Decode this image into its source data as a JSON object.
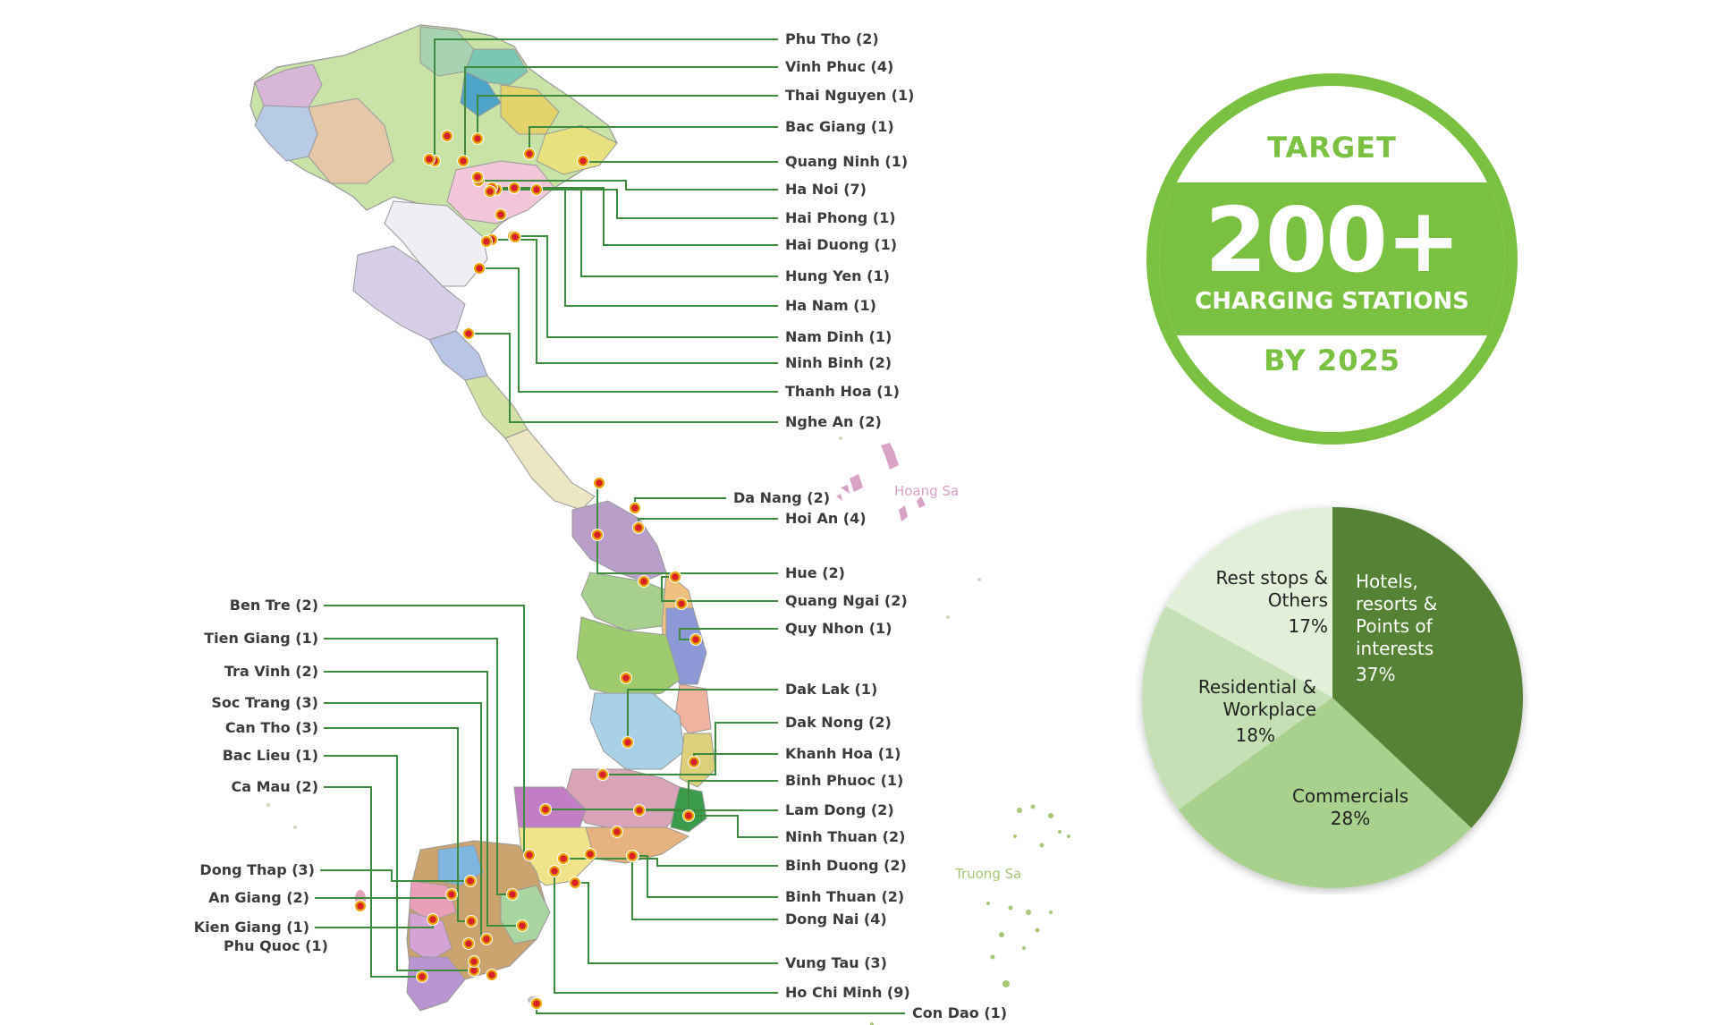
{
  "map": {
    "islands": {
      "hoang_sa": "Hoang Sa",
      "truong_sa": "Truong Sa"
    },
    "colors": {
      "leader": "#3d8b3d",
      "marker_ring": "#e8a400",
      "marker_dot": "#d6202a"
    },
    "right_labels": [
      "Phu Tho (2)",
      "Vinh Phuc (4)",
      "Thai Nguyen (1)",
      "Bac Giang (1)",
      "Quang Ninh (1)",
      "Ha Noi (7)",
      "Hai Phong (1)",
      "Hai Duong (1)",
      "Hung Yen (1)",
      "Ha Nam (1)",
      "Nam Dinh (1)",
      "Ninh Binh (2)",
      "Thanh Hoa (1)",
      "Nghe An (2)",
      "Da Nang (2)",
      "Hoi An (4)",
      "Hue (2)",
      "Quang Ngai (2)",
      "Quy Nhon (1)",
      "Dak Lak (1)",
      "Dak Nong (2)",
      "Khanh Hoa (1)",
      "Binh Phuoc (1)",
      "Lam Dong (2)",
      "Ninh Thuan (2)",
      "Binh Duong (2)",
      "Binh Thuan (2)",
      "Dong Nai (4)",
      "Vung Tau (3)",
      "Ho Chi Minh (9)",
      "Con Dao (1)"
    ],
    "left_labels": [
      "Ben Tre (2)",
      "Tien Giang (1)",
      "Tra Vinh (2)",
      "Soc Trang (3)",
      "Can Tho (3)",
      "Bac Lieu (1)",
      "Ca Mau (2)",
      "Dong Thap (3)",
      "An Giang (2)",
      "Kien Giang (1)",
      "Phu Quoc (1)"
    ]
  },
  "target_badge": {
    "top_text": "TARGET",
    "number": "200+",
    "subtitle": "CHARGING STATIONS",
    "bottom_text": "BY 2025",
    "color": "#7ac142"
  },
  "pie": {
    "slices": [
      {
        "name": "Hotels, resorts & Points of interests",
        "lines": [
          "Hotels,",
          "resorts &",
          "Points of",
          "interests"
        ],
        "pct": "37%",
        "value": 37,
        "color": "#548235"
      },
      {
        "name": "Commercials",
        "lines": [
          "Commercials"
        ],
        "pct": "28%",
        "value": 28,
        "color": "#a9d18e"
      },
      {
        "name": "Residential & Workplace",
        "lines": [
          "Residential &",
          "Workplace"
        ],
        "pct": "18%",
        "value": 18,
        "color": "#c5e0b4"
      },
      {
        "name": "Rest stops & Others",
        "lines": [
          "Rest stops &",
          "Others"
        ],
        "pct": "17%",
        "value": 17,
        "color": "#e2efd9"
      }
    ]
  }
}
